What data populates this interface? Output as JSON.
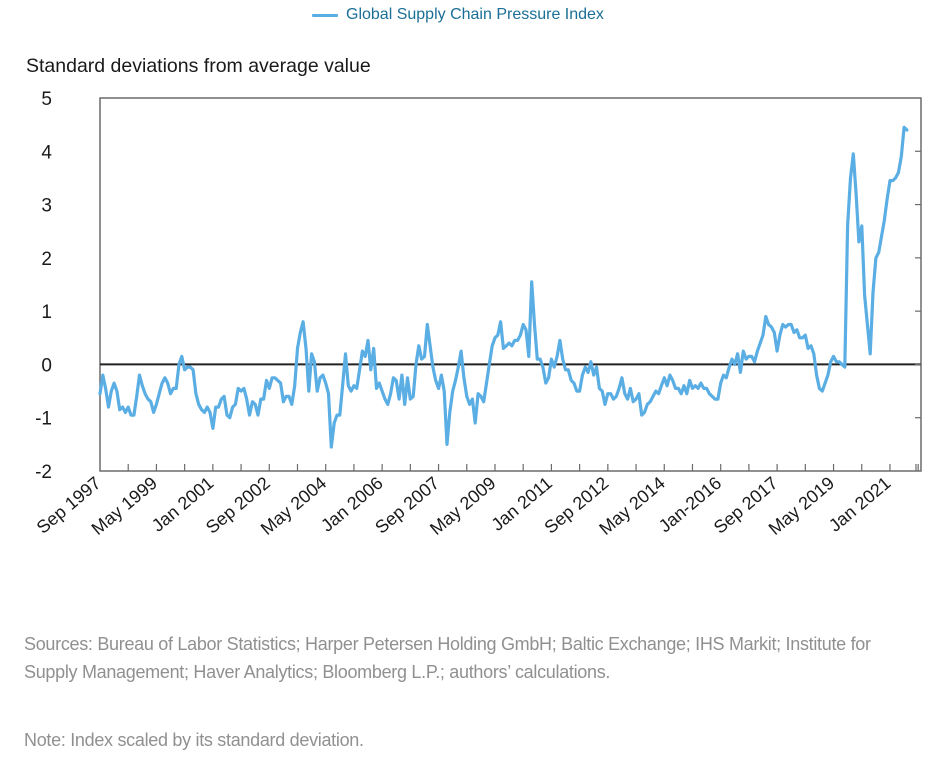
{
  "chart_data": {
    "type": "line",
    "title": "",
    "legend": {
      "entries": [
        "Global Supply Chain Pressure Index"
      ],
      "placement": "top-center"
    },
    "ylabel": "Standard deviations from average value",
    "xlabel": "",
    "ylim": [
      -2,
      5
    ],
    "yticks": [
      5,
      4,
      3,
      2,
      1,
      0,
      -1,
      -2
    ],
    "x_tick_labels": [
      "Sep 1997",
      "May 1999",
      "Jan 2001",
      "Sep 2002",
      "May 2004",
      "Jan 2006",
      "Sep 2007",
      "May 2009",
      "Jan 2011",
      "Sep 2012",
      "May 2014",
      "Jan-2016",
      "Sep 2017",
      "May 2019",
      "Jan 2021"
    ],
    "x_start": "Sep 1997",
    "x_frequency": "monthly",
    "x_tick_interval_months": 10,
    "x_label_interval_months": 20,
    "x_range_months": 291,
    "grid": false,
    "zero_line": true,
    "series": [
      {
        "name": "Global Supply Chain Pressure Index",
        "color": "#5aaee3",
        "values": [
          -0.55,
          -0.2,
          -0.45,
          -0.8,
          -0.5,
          -0.35,
          -0.5,
          -0.85,
          -0.8,
          -0.9,
          -0.8,
          -0.95,
          -0.95,
          -0.6,
          -0.2,
          -0.4,
          -0.55,
          -0.65,
          -0.7,
          -0.9,
          -0.75,
          -0.55,
          -0.35,
          -0.25,
          -0.35,
          -0.55,
          -0.45,
          -0.45,
          0.0,
          0.15,
          -0.1,
          -0.05,
          -0.05,
          -0.1,
          -0.55,
          -0.75,
          -0.85,
          -0.9,
          -0.8,
          -0.9,
          -1.2,
          -0.8,
          -0.8,
          -0.65,
          -0.6,
          -0.95,
          -1.0,
          -0.8,
          -0.75,
          -0.45,
          -0.5,
          -0.45,
          -0.65,
          -0.95,
          -0.7,
          -0.75,
          -0.95,
          -0.65,
          -0.65,
          -0.3,
          -0.45,
          -0.25,
          -0.25,
          -0.3,
          -0.35,
          -0.7,
          -0.6,
          -0.6,
          -0.75,
          -0.4,
          0.3,
          0.6,
          0.8,
          0.3,
          -0.5,
          0.2,
          0.05,
          -0.5,
          -0.25,
          -0.2,
          -0.35,
          -0.55,
          -1.55,
          -1.1,
          -0.95,
          -0.95,
          -0.4,
          0.2,
          -0.4,
          -0.5,
          -0.4,
          -0.45,
          -0.1,
          0.25,
          0.15,
          0.45,
          -0.1,
          0.3,
          -0.45,
          -0.35,
          -0.5,
          -0.65,
          -0.75,
          -0.55,
          -0.25,
          -0.3,
          -0.65,
          -0.2,
          -0.75,
          -0.25,
          -0.65,
          -0.6,
          0.0,
          0.35,
          0.1,
          0.15,
          0.75,
          0.35,
          -0.05,
          -0.3,
          -0.45,
          -0.2,
          -0.5,
          -1.5,
          -0.9,
          -0.5,
          -0.3,
          -0.05,
          0.25,
          -0.25,
          -0.6,
          -0.75,
          -0.65,
          -1.1,
          -0.55,
          -0.6,
          -0.7,
          -0.35,
          0.0,
          0.35,
          0.5,
          0.55,
          0.8,
          0.3,
          0.35,
          0.4,
          0.35,
          0.45,
          0.45,
          0.55,
          0.75,
          0.65,
          0.15,
          1.55,
          0.75,
          0.1,
          0.1,
          -0.05,
          -0.35,
          -0.25,
          0.1,
          -0.05,
          0.15,
          0.45,
          0.1,
          -0.1,
          -0.1,
          -0.3,
          -0.35,
          -0.5,
          -0.5,
          -0.2,
          -0.05,
          -0.15,
          0.05,
          -0.2,
          -0.05,
          -0.45,
          -0.5,
          -0.75,
          -0.55,
          -0.55,
          -0.65,
          -0.6,
          -0.45,
          -0.25,
          -0.55,
          -0.65,
          -0.45,
          -0.7,
          -0.65,
          -0.55,
          -0.95,
          -0.9,
          -0.75,
          -0.7,
          -0.6,
          -0.5,
          -0.55,
          -0.4,
          -0.25,
          -0.4,
          -0.2,
          -0.3,
          -0.45,
          -0.45,
          -0.55,
          -0.4,
          -0.55,
          -0.3,
          -0.45,
          -0.4,
          -0.45,
          -0.35,
          -0.45,
          -0.45,
          -0.55,
          -0.6,
          -0.65,
          -0.65,
          -0.35,
          -0.2,
          -0.25,
          -0.05,
          0.1,
          0.0,
          0.2,
          -0.15,
          0.25,
          0.1,
          0.15,
          0.15,
          0.05,
          0.25,
          0.4,
          0.55,
          0.9,
          0.75,
          0.7,
          0.6,
          0.25,
          0.55,
          0.75,
          0.7,
          0.75,
          0.75,
          0.6,
          0.65,
          0.5,
          0.5,
          0.55,
          0.3,
          0.35,
          0.2,
          -0.2,
          -0.45,
          -0.5,
          -0.35,
          -0.2,
          0.05,
          0.15,
          0.05,
          0.05,
          0.0,
          -0.05,
          2.6,
          3.5,
          3.95,
          3.2,
          2.3,
          2.6,
          1.3,
          0.75,
          0.2,
          1.35,
          2.0,
          2.1,
          2.4,
          2.7,
          3.1,
          3.45,
          3.45,
          3.5,
          3.6,
          3.9,
          4.45,
          4.4
        ]
      }
    ],
    "notes": {
      "sources": "Sources: Bureau of Labor Statistics; Harper Petersen Holding GmbH; Baltic Exchange; IHS Markit; Institute for Supply Management; Haver Analytics; Bloomberg L.P.; authors’ calculations.",
      "note": "Note: Index scaled by its standard deviation."
    }
  }
}
